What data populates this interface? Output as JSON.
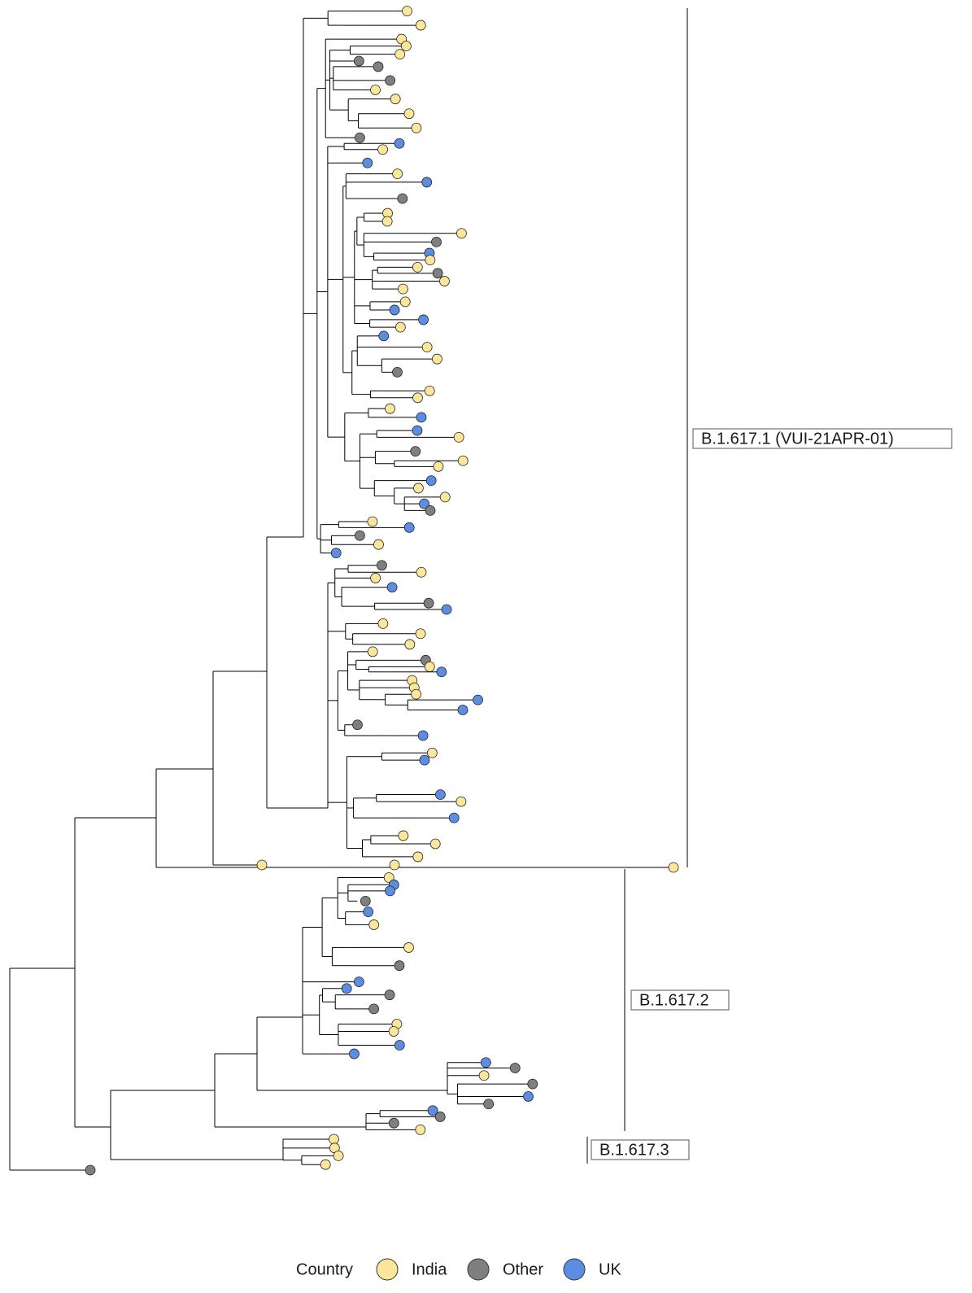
{
  "clades": [
    {
      "label": "B.1.617.1 (VUI-21APR-01)"
    },
    {
      "label": "B.1.617.2"
    },
    {
      "label": "B.1.617.3"
    }
  ],
  "legend": {
    "title": "Country",
    "items": [
      {
        "label": "India",
        "color": "#fbe69a"
      },
      {
        "label": "Other",
        "color": "#7f7f7f"
      },
      {
        "label": "UK",
        "color": "#5b8de3"
      }
    ]
  }
}
